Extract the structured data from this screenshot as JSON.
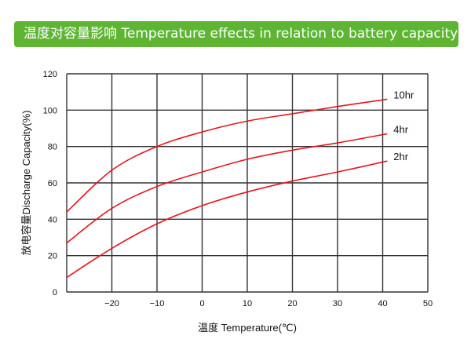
{
  "chart_data": {
    "type": "line",
    "title": "温度对容量影响 Temperature effects in relation to battery capacity",
    "xlabel": "温度 Temperature(℃)",
    "ylabel": "放电容量Discharge Capacity(%)",
    "xlim": [
      -30,
      50
    ],
    "ylim": [
      0,
      120
    ],
    "xticks": [
      "-20",
      "-10",
      "0",
      "10",
      "20",
      "30",
      "40",
      "50"
    ],
    "yticks": [
      "0",
      "20",
      "40",
      "60",
      "80",
      "100",
      "120"
    ],
    "grid": true,
    "line_color": "#e8141e",
    "x": [
      -30,
      -20,
      -10,
      0,
      10,
      20,
      30,
      41
    ],
    "series": [
      {
        "name": "10hr",
        "values": [
          44,
          67,
          80,
          88,
          94,
          98,
          102,
          106
        ]
      },
      {
        "name": "4hr",
        "values": [
          27,
          46,
          58,
          66,
          73,
          78,
          82,
          87
        ]
      },
      {
        "name": "2hr",
        "values": [
          8,
          24,
          37.5,
          47.5,
          55,
          61,
          66,
          72
        ]
      }
    ]
  }
}
